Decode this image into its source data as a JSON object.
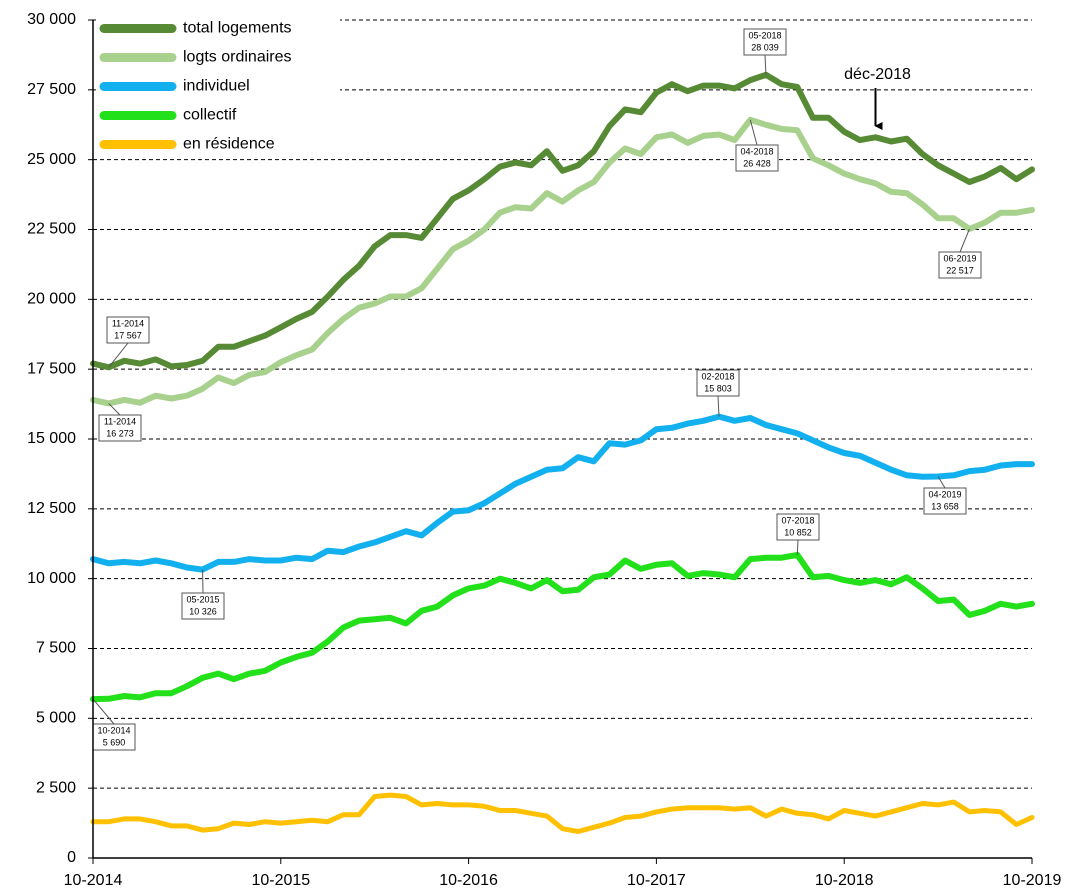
{
  "chart_data": {
    "type": "line",
    "categories": [
      "10-2014",
      null,
      null,
      null,
      null,
      null,
      null,
      null,
      null,
      null,
      null,
      null,
      "10-2015",
      null,
      null,
      null,
      null,
      null,
      null,
      null,
      null,
      null,
      null,
      null,
      "10-2016",
      null,
      null,
      null,
      null,
      null,
      null,
      null,
      null,
      null,
      null,
      null,
      "10-2017",
      null,
      null,
      null,
      null,
      null,
      null,
      null,
      null,
      null,
      null,
      null,
      "10-2018",
      null,
      null,
      null,
      null,
      null,
      null,
      null,
      null,
      null,
      null,
      null,
      "10-2019"
    ],
    "series": [
      {
        "name": "total logements",
        "color": "#578a35",
        "values": [
          17700,
          17567,
          17800,
          17700,
          17850,
          17600,
          17650,
          17800,
          18300,
          18300,
          18500,
          18700,
          19000,
          19300,
          19550,
          20100,
          20700,
          21200,
          21900,
          22300,
          22300,
          22200,
          22900,
          23600,
          23900,
          24300,
          24750,
          24900,
          24800,
          25300,
          24600,
          24800,
          25300,
          26200,
          26800,
          26700,
          27400,
          27700,
          27450,
          27650,
          27650,
          27550,
          27850,
          28039,
          27700,
          27600,
          26500,
          26500,
          26000,
          25700,
          25800,
          25650,
          25750,
          25200,
          24800,
          24500,
          24200,
          24400,
          24700,
          24300,
          24650
        ]
      },
      {
        "name": "logts ordinaires",
        "color": "#a9d18e",
        "values": [
          16400,
          16273,
          16400,
          16300,
          16550,
          16450,
          16550,
          16800,
          17200,
          17000,
          17300,
          17400,
          17750,
          18000,
          18200,
          18800,
          19300,
          19700,
          19850,
          20100,
          20100,
          20400,
          21100,
          21800,
          22100,
          22500,
          23100,
          23300,
          23250,
          23800,
          23500,
          23900,
          24200,
          24900,
          25400,
          25200,
          25800,
          25900,
          25600,
          25850,
          25900,
          25700,
          26428,
          26250,
          26100,
          26050,
          25050,
          24800,
          24500,
          24300,
          24150,
          23850,
          23800,
          23400,
          22900,
          22900,
          22517,
          22750,
          23100,
          23100,
          23200
        ]
      },
      {
        "name": "individuel",
        "color": "#12b0ee",
        "values": [
          10700,
          10550,
          10600,
          10550,
          10650,
          10550,
          10400,
          10326,
          10600,
          10600,
          10700,
          10650,
          10650,
          10750,
          10700,
          11000,
          10950,
          11150,
          11300,
          11500,
          11700,
          11550,
          12000,
          12400,
          12450,
          12700,
          13050,
          13400,
          13650,
          13900,
          13950,
          14350,
          14200,
          14850,
          14800,
          14950,
          15350,
          15400,
          15550,
          15650,
          15803,
          15650,
          15750,
          15500,
          15350,
          15200,
          14950,
          14700,
          14500,
          14400,
          14150,
          13900,
          13700,
          13650,
          13658,
          13700,
          13850,
          13900,
          14050,
          14100,
          14100
        ]
      },
      {
        "name": "collectif",
        "color": "#22e01a",
        "values": [
          5690,
          5700,
          5800,
          5750,
          5900,
          5900,
          6150,
          6450,
          6600,
          6400,
          6600,
          6700,
          7000,
          7200,
          7350,
          7750,
          8250,
          8500,
          8550,
          8600,
          8400,
          8850,
          9000,
          9400,
          9650,
          9750,
          10000,
          9850,
          9650,
          9950,
          9550,
          9600,
          10050,
          10150,
          10650,
          10350,
          10500,
          10550,
          10100,
          10200,
          10150,
          10050,
          10700,
          10750,
          10750,
          10852,
          10050,
          10100,
          9950,
          9850,
          9950,
          9800,
          10050,
          9650,
          9200,
          9250,
          8700,
          8850,
          9100,
          9000,
          9100
        ]
      },
      {
        "name": "en résidence",
        "color": "#ffc000",
        "values": [
          1300,
          1300,
          1400,
          1400,
          1300,
          1150,
          1150,
          1000,
          1050,
          1250,
          1200,
          1300,
          1250,
          1300,
          1350,
          1300,
          1550,
          1550,
          2200,
          2250,
          2200,
          1900,
          1950,
          1900,
          1900,
          1850,
          1700,
          1700,
          1600,
          1500,
          1050,
          950,
          1100,
          1250,
          1450,
          1500,
          1650,
          1750,
          1800,
          1800,
          1800,
          1750,
          1800,
          1500,
          1750,
          1600,
          1550,
          1400,
          1700,
          1600,
          1500,
          1650,
          1800,
          1950,
          1900,
          2000,
          1650,
          1700,
          1650,
          1200,
          1450
        ]
      }
    ],
    "ylim": [
      0,
      30000
    ],
    "yticks": [
      0,
      {
        "value": 2500,
        "label": "2 500"
      },
      {
        "value": 5000,
        "label": "5 000"
      },
      {
        "value": 7500,
        "label": "7 500"
      },
      {
        "value": 10000,
        "label": "10 000"
      },
      {
        "value": 12500,
        "label": "12 500"
      },
      {
        "value": 15000,
        "label": "15 000"
      },
      {
        "value": 17500,
        "label": "17 500"
      },
      {
        "value": 20000,
        "label": "20 000"
      },
      {
        "value": 22500,
        "label": "22 500"
      },
      {
        "value": 25000,
        "label": "25 000"
      },
      {
        "value": 27500,
        "label": "27 500"
      },
      {
        "value": 30000,
        "label": "30 000"
      }
    ],
    "grid": true,
    "legend": "upper left",
    "annotations": [
      {
        "date": "11-2014",
        "label": "17 567"
      },
      {
        "date": "11-2014",
        "label": "16 273"
      },
      {
        "date": "05-2015",
        "label": "10 326"
      },
      {
        "date": "10-2014",
        "label": "5 690"
      },
      {
        "date": "05-2018",
        "label": "28 039"
      },
      {
        "date": "04-2018",
        "label": "26 428"
      },
      {
        "date": "02-2018",
        "label": "15 803"
      },
      {
        "date": "07-2018",
        "label": "10 852"
      },
      {
        "date": "06-2019",
        "label": "22 517"
      },
      {
        "date": "04-2019",
        "label": "13 658"
      }
    ],
    "arrow_note": "déc-2018"
  }
}
